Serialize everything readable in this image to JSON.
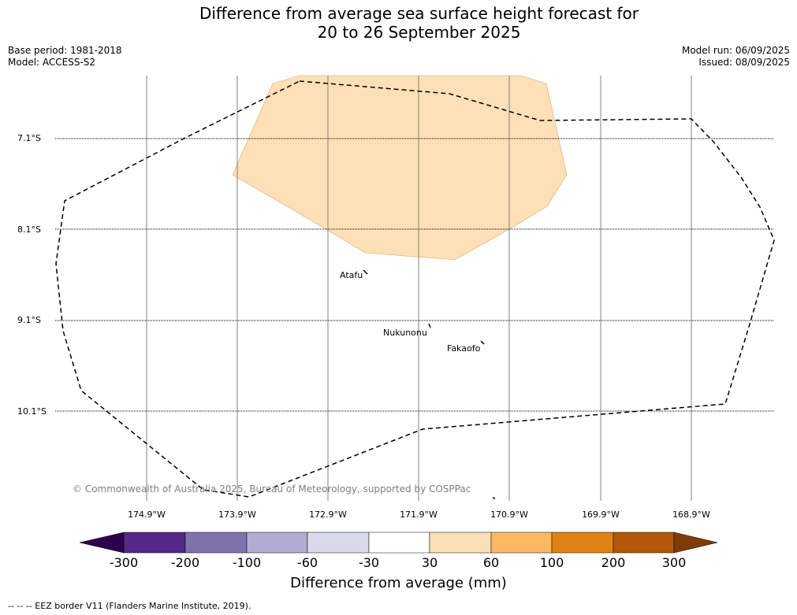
{
  "title": {
    "line1": "Difference from average sea surface height forecast for",
    "line2": "20 to 26 September 2025"
  },
  "meta": {
    "base_period": "Base period: 1981-2018",
    "model": "Model: ACCESS-S2",
    "model_run": "Model run: 06/09/2025",
    "issued": "Issued: 08/09/2025"
  },
  "map": {
    "lat_labels": [
      "7.1°S",
      "8.1°S",
      "9.1°S",
      "10.1°S"
    ],
    "lon_labels": [
      "174.9°W",
      "173.9°W",
      "172.9°W",
      "171.9°W",
      "170.9°W",
      "169.9°W",
      "168.9°W"
    ],
    "places": {
      "atafu": "Atafu",
      "nukunonu": "Nukunonu",
      "fakaofo": "Fakaofo"
    },
    "anomaly_region_class": "30 to 60",
    "copyright": "© Commonwealth of Australia 2025, Bureau of Meteorology, supported by COSPPac"
  },
  "colorbar": {
    "ticks": [
      "-300",
      "-200",
      "-100",
      "-60",
      "-30",
      "30",
      "60",
      "100",
      "200",
      "300"
    ],
    "colors": [
      "#2d004b",
      "#542788",
      "#8073ac",
      "#b2abd2",
      "#d8daeb",
      "#ffffff",
      "#fee0b6",
      "#fdb863",
      "#e08214",
      "#b35806",
      "#7f3b08"
    ],
    "label": "Difference from average (mm)"
  },
  "legend": {
    "eez": "--  --  -- EEZ border V11 (Flanders Marine Institute, 2019)."
  }
}
